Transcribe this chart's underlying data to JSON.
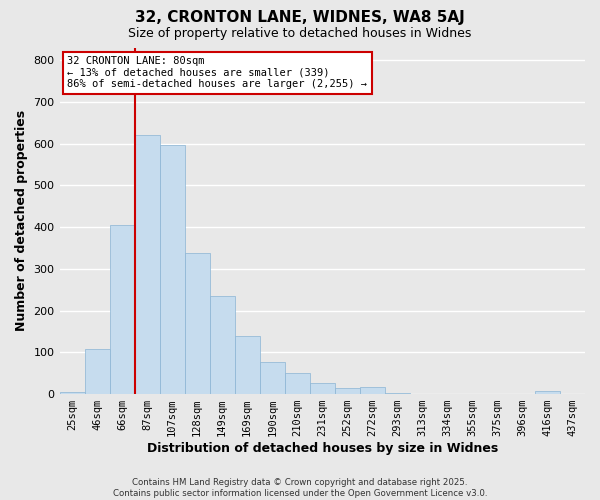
{
  "title": "32, CRONTON LANE, WIDNES, WA8 5AJ",
  "subtitle": "Size of property relative to detached houses in Widnes",
  "xlabel": "Distribution of detached houses by size in Widnes",
  "ylabel": "Number of detached properties",
  "bar_labels": [
    "25sqm",
    "46sqm",
    "66sqm",
    "87sqm",
    "107sqm",
    "128sqm",
    "149sqm",
    "169sqm",
    "190sqm",
    "210sqm",
    "231sqm",
    "252sqm",
    "272sqm",
    "293sqm",
    "313sqm",
    "334sqm",
    "355sqm",
    "375sqm",
    "396sqm",
    "416sqm",
    "437sqm"
  ],
  "bar_values": [
    5,
    108,
    405,
    620,
    596,
    338,
    236,
    138,
    78,
    50,
    26,
    14,
    16,
    2,
    0,
    0,
    0,
    0,
    0,
    7,
    0
  ],
  "bar_color": "#c6dcee",
  "bar_edge_color": "#8ab4d4",
  "bg_color": "#e8e8e8",
  "grid_color": "#ffffff",
  "vline_color": "#cc0000",
  "vline_pos": 2.5,
  "annotation_title": "32 CRONTON LANE: 80sqm",
  "annotation_line2": "← 13% of detached houses are smaller (339)",
  "annotation_line3": "86% of semi-detached houses are larger (2,255) →",
  "annotation_box_color": "#ffffff",
  "annotation_box_edge": "#cc0000",
  "ylim": [
    0,
    830
  ],
  "yticks": [
    0,
    100,
    200,
    300,
    400,
    500,
    600,
    700,
    800
  ],
  "footer_line1": "Contains HM Land Registry data © Crown copyright and database right 2025.",
  "footer_line2": "Contains public sector information licensed under the Open Government Licence v3.0."
}
